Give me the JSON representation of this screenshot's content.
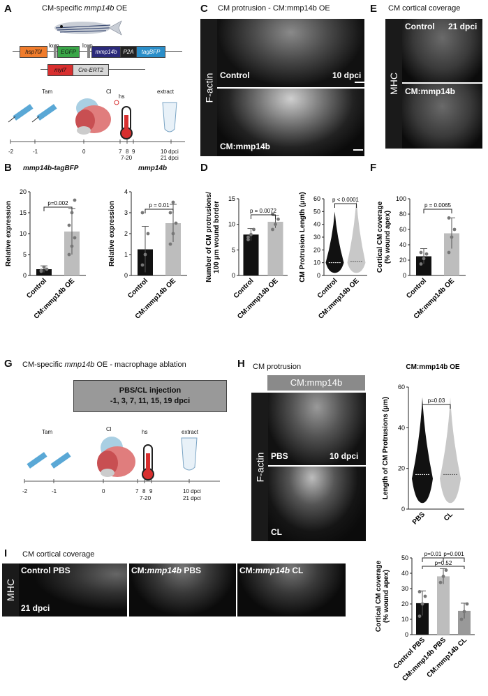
{
  "labels": {
    "A": "A",
    "B": "B",
    "C": "C",
    "D": "D",
    "E": "E",
    "F": "F",
    "G": "G",
    "H": "H",
    "I": "I"
  },
  "panelA": {
    "title_pre": "CM-specific ",
    "title_gene": "mmp14b",
    "title_post": " OE",
    "construct1": [
      "hsp70l",
      "EGFP",
      "mmp14b",
      "P2A",
      "tagBFP"
    ],
    "loxp": [
      "loxp",
      "loxp"
    ],
    "construct2": [
      "myl7",
      "Cre-ERT2"
    ],
    "events": {
      "tam": "Tam",
      "cl": "Cl",
      "hs": "hs",
      "extract": "extract"
    },
    "ticks": [
      "-2",
      "-1",
      "0",
      "7",
      "8",
      "9",
      "10 dpci"
    ],
    "ticks2": [
      "7-20",
      "21 dpci"
    ],
    "colors": {
      "hsp70l": "#f07c2c",
      "egfp": "#3aa648",
      "mmp14b": "#2b2a7a",
      "p2a": "#222",
      "tagbfp": "#2a8ec9",
      "myl7": "#d82f2f",
      "cre": "#d7d7d7"
    }
  },
  "panelB": {
    "chart1": {
      "title": "mmp14b-tagBFP",
      "ylabel": "Relative expression",
      "categories": [
        "Control",
        "CM:mmp14b OE"
      ],
      "ylim": [
        0,
        20
      ],
      "yticks": [
        "0",
        "5",
        "10",
        "15",
        "20"
      ],
      "values": [
        1.5,
        10.5
      ],
      "p": "p=0.002"
    },
    "chart2": {
      "title": "mmp14b",
      "ylabel": "Relative expression",
      "categories": [
        "Control",
        "CM:mmp14b OE"
      ],
      "ylim": [
        0,
        4
      ],
      "yticks": [
        "0",
        "1",
        "2",
        "3",
        "4"
      ],
      "values": [
        1.25,
        2.5
      ],
      "p": "p = 0.01"
    }
  },
  "panelC": {
    "title": "CM protrusion - CM:mmp14b OE",
    "side": "F-actin",
    "top_label": "Control",
    "top_time": "10 dpci",
    "bottom_label": "CM:mmp14b"
  },
  "panelD": {
    "chart1": {
      "ylabel": "Number of CM protrusions/ 100 μm wound border",
      "categories": [
        "Control",
        "CM:mmp14b OE"
      ],
      "ylim": [
        0,
        15
      ],
      "yticks": [
        "0",
        "5",
        "10",
        "15"
      ],
      "values": [
        8,
        10.5
      ],
      "p": "p = 0.0072"
    },
    "chart2": {
      "ylabel": "CM Protrusion Length (μm)",
      "categories": [
        "Control",
        "CM:mmp14b OE"
      ],
      "ylim": [
        0,
        60
      ],
      "yticks": [
        "0",
        "10",
        "20",
        "30",
        "40",
        "50",
        "60"
      ],
      "medians": [
        10,
        11
      ],
      "p": "p < 0.0001"
    }
  },
  "panelE": {
    "title": "CM cortical coverage",
    "side": "MHC",
    "top_label": "Control",
    "top_time": "21 dpci",
    "bottom_label": "CM:mmp14b"
  },
  "panelF": {
    "ylabel": "Cortical CM coverage (% wound apex)",
    "categories": [
      "Control",
      "CM:mmp14b OE"
    ],
    "ylim": [
      0,
      100
    ],
    "yticks": [
      "0",
      "20",
      "40",
      "60",
      "80",
      "100"
    ],
    "values": [
      25,
      55
    ],
    "p": "p = 0.0065"
  },
  "panelG": {
    "title": "CM-specific mmp14b OE - macrophage ablation",
    "box1": "PBS/CL injection",
    "box2": "-1, 3, 7, 11, 15, 19 dpci",
    "events": {
      "tam": "Tam",
      "cl": "Cl",
      "hs": "hs",
      "extract": "extract"
    },
    "ticks": [
      "-2",
      "-1",
      "0",
      "7",
      "8",
      "9",
      "10 dpci"
    ],
    "ticks2": [
      "7-20",
      "21 dpci"
    ]
  },
  "panelH": {
    "title": "CM protrusion",
    "header": "CM:mmp14b",
    "side": "F-actin",
    "top_label": "PBS",
    "top_time": "10 dpci",
    "bottom_label": "CL",
    "chart": {
      "title": "CM:mmp14b OE",
      "ylabel": "Length of CM Protrusions (μm)",
      "categories": [
        "PBS",
        "CL"
      ],
      "ylim": [
        0,
        60
      ],
      "yticks": [
        "0",
        "20",
        "40",
        "60"
      ],
      "p": "p=0.03"
    }
  },
  "panelI": {
    "title": "CM cortical coverage",
    "side": "MHC",
    "panels": [
      "Control PBS",
      "CM:mmp14b PBS",
      "CM:mmp14b CL"
    ],
    "time": "21 dpci",
    "chart": {
      "ylabel": "Cortical CM coverage (% wound apex)",
      "categories": [
        "Control PBS",
        "CM:mmp14b PBS",
        "CM:mmp14b CL"
      ],
      "ylim": [
        0,
        50
      ],
      "yticks": [
        "0",
        "10",
        "20",
        "30",
        "40",
        "50"
      ],
      "values": [
        20.5,
        38,
        15.5
      ],
      "p": [
        "p=0.01",
        "p=0.001",
        "p=0.52"
      ]
    }
  }
}
